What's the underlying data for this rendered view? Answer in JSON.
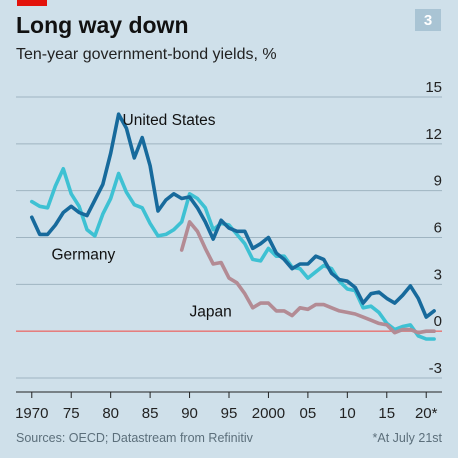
{
  "header": {
    "badge": "3"
  },
  "footer": {
    "source": "Sources: OECD; Datastream from Refinitiv",
    "footnote": "*At July 21st"
  },
  "chart_data": {
    "type": "line",
    "title": "Long way down",
    "subtitle": "Ten-year government-bond yields, %",
    "ylim": [
      -3,
      15
    ],
    "xlim": [
      1968,
      2022
    ],
    "grid": true,
    "y_ticks": [
      {
        "value": -3,
        "label": "-3"
      },
      {
        "value": 0,
        "label": "0"
      },
      {
        "value": 3,
        "label": "3"
      },
      {
        "value": 6,
        "label": "6"
      },
      {
        "value": 9,
        "label": "9"
      },
      {
        "value": 12,
        "label": "12"
      },
      {
        "value": 15,
        "label": "15"
      }
    ],
    "x_ticks": [
      {
        "value": 1970,
        "label": "1970"
      },
      {
        "value": 1975,
        "label": "75"
      },
      {
        "value": 1980,
        "label": "80"
      },
      {
        "value": 1985,
        "label": "85"
      },
      {
        "value": 1990,
        "label": "90"
      },
      {
        "value": 1995,
        "label": "95"
      },
      {
        "value": 2000,
        "label": "2000"
      },
      {
        "value": 2005,
        "label": "05"
      },
      {
        "value": 2010,
        "label": "10"
      },
      {
        "value": 2015,
        "label": "15"
      },
      {
        "value": 2020,
        "label": "20*"
      }
    ],
    "series": [
      {
        "name": "Germany",
        "color": "#3ec1d3",
        "x": [
          1970,
          1971,
          1972,
          1973,
          1974,
          1975,
          1976,
          1977,
          1978,
          1979,
          1980,
          1981,
          1982,
          1983,
          1984,
          1985,
          1986,
          1987,
          1988,
          1989,
          1990,
          1991,
          1992,
          1993,
          1994,
          1995,
          1996,
          1997,
          1998,
          1999,
          2000,
          2001,
          2002,
          2003,
          2004,
          2005,
          2006,
          2007,
          2008,
          2009,
          2010,
          2011,
          2012,
          2013,
          2014,
          2015,
          2016,
          2017,
          2018,
          2019,
          2020,
          2021
        ],
        "y": [
          8.3,
          8.0,
          7.9,
          9.3,
          10.4,
          8.8,
          8.0,
          6.5,
          6.1,
          7.5,
          8.5,
          10.1,
          8.9,
          8.1,
          7.9,
          6.9,
          6.1,
          6.2,
          6.5,
          7.0,
          8.8,
          8.5,
          7.9,
          6.5,
          6.9,
          6.8,
          6.2,
          5.6,
          4.6,
          4.5,
          5.3,
          4.8,
          4.8,
          4.1,
          4.0,
          3.4,
          3.8,
          4.2,
          4.0,
          3.2,
          2.7,
          2.6,
          1.5,
          1.6,
          1.2,
          0.5,
          0.1,
          0.3,
          0.4,
          -0.3,
          -0.5,
          -0.5
        ]
      },
      {
        "name": "United States",
        "color": "#176a9c",
        "x": [
          1970,
          1971,
          1972,
          1973,
          1974,
          1975,
          1976,
          1977,
          1978,
          1979,
          1980,
          1981,
          1982,
          1983,
          1984,
          1985,
          1986,
          1987,
          1988,
          1989,
          1990,
          1991,
          1992,
          1993,
          1994,
          1995,
          1996,
          1997,
          1998,
          1999,
          2000,
          2001,
          2002,
          2003,
          2004,
          2005,
          2006,
          2007,
          2008,
          2009,
          2010,
          2011,
          2012,
          2013,
          2014,
          2015,
          2016,
          2017,
          2018,
          2019,
          2020,
          2021
        ],
        "y": [
          7.3,
          6.2,
          6.2,
          6.8,
          7.6,
          8.0,
          7.6,
          7.4,
          8.4,
          9.4,
          11.4,
          13.9,
          13.0,
          11.1,
          12.4,
          10.6,
          7.7,
          8.4,
          8.8,
          8.5,
          8.6,
          7.9,
          7.0,
          5.9,
          7.1,
          6.6,
          6.4,
          6.4,
          5.3,
          5.6,
          6.0,
          5.0,
          4.6,
          4.0,
          4.3,
          4.3,
          4.8,
          4.6,
          3.7,
          3.3,
          3.2,
          2.8,
          1.8,
          2.4,
          2.5,
          2.1,
          1.8,
          2.3,
          2.9,
          2.1,
          0.9,
          1.3
        ]
      },
      {
        "name": "Japan",
        "color": "#b38b94",
        "x": [
          1989,
          1990,
          1991,
          1992,
          1993,
          1994,
          1995,
          1996,
          1997,
          1998,
          1999,
          2000,
          2001,
          2002,
          2003,
          2004,
          2005,
          2006,
          2007,
          2008,
          2009,
          2010,
          2011,
          2012,
          2013,
          2014,
          2015,
          2016,
          2017,
          2018,
          2019,
          2020,
          2021
        ],
        "y": [
          5.2,
          7.0,
          6.4,
          5.3,
          4.3,
          4.4,
          3.4,
          3.1,
          2.4,
          1.5,
          1.8,
          1.8,
          1.3,
          1.3,
          1.0,
          1.5,
          1.4,
          1.7,
          1.7,
          1.5,
          1.3,
          1.2,
          1.1,
          0.9,
          0.7,
          0.5,
          0.4,
          -0.1,
          0.1,
          0.1,
          -0.1,
          0.0,
          0.0
        ]
      }
    ],
    "annotations": [
      {
        "text": "United States",
        "x": 1981.5,
        "y": 13.2
      },
      {
        "text": "Germany",
        "x": 1972.5,
        "y": 4.6
      },
      {
        "text": "Japan",
        "x": 1990,
        "y": 0.95
      }
    ],
    "reference_line": {
      "y": 0,
      "color": "#e8706e"
    }
  }
}
